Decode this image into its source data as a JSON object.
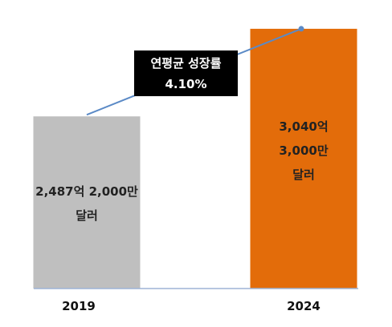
{
  "chart_data": {
    "type": "bar",
    "categories": [
      "2019",
      "2024"
    ],
    "values": [
      2487.2,
      3040.3
    ],
    "value_labels": [
      "2,487억 2,000만\n달러",
      "3,040억 3,000만\n달러"
    ],
    "colors": [
      "#bfbfbf",
      "#e36c0a"
    ],
    "ylim": [
      1400,
      3050
    ],
    "annotation": "연평균 성장률\n4.10%",
    "trend_color": "#5b8ac6"
  }
}
